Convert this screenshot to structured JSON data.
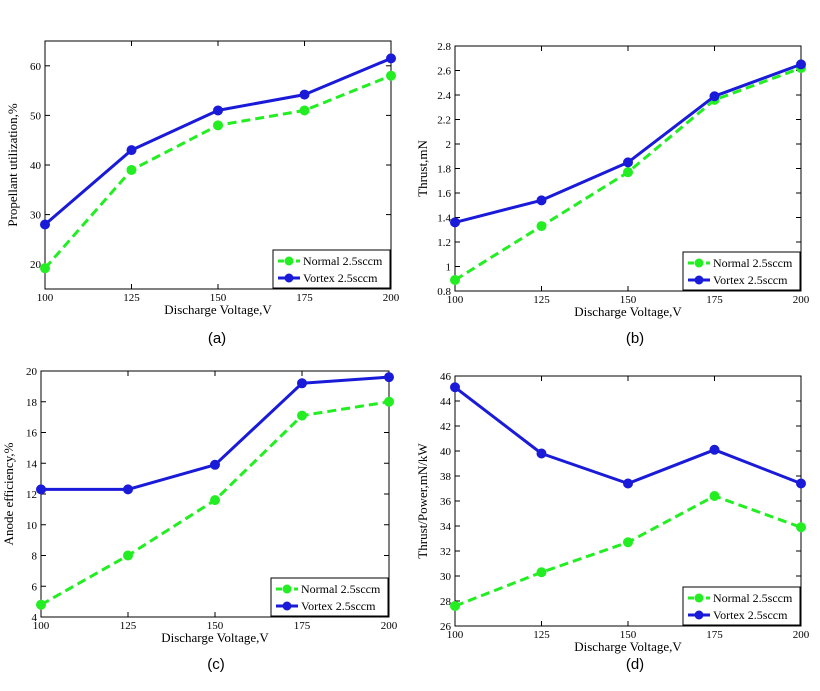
{
  "colors": {
    "normal": "#22ee22",
    "vortex": "#1a1ad9"
  },
  "chart_data": [
    {
      "id": "a",
      "type": "line",
      "panel_label": "(a)",
      "xlabel": "Discharge Voltage,V",
      "ylabel": "Propellant utilization,%",
      "xlim": [
        100,
        200
      ],
      "ylim": [
        15,
        65
      ],
      "xticks": [
        100,
        125,
        150,
        175,
        200
      ],
      "yticks": [
        20,
        30,
        40,
        50,
        60
      ],
      "ytick_labels": [
        "20",
        "30",
        "40",
        "50",
        "60"
      ],
      "x": [
        100,
        125,
        150,
        175,
        200
      ],
      "legend": "bottom-right",
      "series": [
        {
          "name": "Normal 2.5sccm",
          "style": "dashed",
          "values": [
            19.2,
            39.0,
            48.0,
            51.0,
            58.0
          ]
        },
        {
          "name": "Vortex 2.5sccm",
          "style": "solid",
          "values": [
            28.0,
            43.0,
            51.0,
            54.2,
            61.5
          ]
        }
      ]
    },
    {
      "id": "b",
      "type": "line",
      "panel_label": "(b)",
      "xlabel": "Discharge Voltage,V",
      "ylabel": "Thrust,mN",
      "xlim": [
        100,
        200
      ],
      "ylim": [
        0.8,
        2.8
      ],
      "xticks": [
        100,
        125,
        150,
        175,
        200
      ],
      "yticks": [
        0.8,
        1.0,
        1.2,
        1.4,
        1.6,
        1.8,
        2.0,
        2.2,
        2.4,
        2.6,
        2.8
      ],
      "ytick_labels": [
        "0.8",
        "1",
        "1.2",
        "1.4",
        "1.6",
        "1.8",
        "2",
        "2.2",
        "2.4",
        "2.6",
        "2.8"
      ],
      "x": [
        100,
        125,
        150,
        175,
        200
      ],
      "legend": "bottom-right",
      "series": [
        {
          "name": "Normal 2.5sccm",
          "style": "dashed",
          "values": [
            0.89,
            1.33,
            1.77,
            2.36,
            2.62
          ]
        },
        {
          "name": "Vortex 2.5sccm",
          "style": "solid",
          "values": [
            1.36,
            1.54,
            1.85,
            2.39,
            2.65
          ]
        }
      ]
    },
    {
      "id": "c",
      "type": "line",
      "panel_label": "(c)",
      "xlabel": "Discharge Voltage,V",
      "ylabel": "Anode efficiency,%",
      "xlim": [
        100,
        200
      ],
      "ylim": [
        4,
        20
      ],
      "xticks": [
        100,
        125,
        150,
        175,
        200
      ],
      "yticks": [
        4,
        6,
        8,
        10,
        12,
        14,
        16,
        18,
        20
      ],
      "ytick_labels": [
        "4",
        "6",
        "8",
        "10",
        "12",
        "14",
        "16",
        "18",
        "20"
      ],
      "x": [
        100,
        125,
        150,
        175,
        200
      ],
      "legend": "bottom-right",
      "series": [
        {
          "name": "Normal 2.5sccm",
          "style": "dashed",
          "values": [
            4.8,
            8.0,
            11.6,
            17.1,
            18.0
          ]
        },
        {
          "name": "Vortex 2.5sccm",
          "style": "solid",
          "values": [
            12.3,
            12.3,
            13.9,
            19.2,
            19.6
          ]
        }
      ]
    },
    {
      "id": "d",
      "type": "line",
      "panel_label": "(d)",
      "xlabel": "Discharge Voltage,V",
      "ylabel": "Thrust/Power,mN/kW",
      "xlim": [
        100,
        200
      ],
      "ylim": [
        26,
        46
      ],
      "xticks": [
        100,
        125,
        150,
        175,
        200
      ],
      "yticks": [
        26,
        28,
        30,
        32,
        34,
        36,
        38,
        40,
        42,
        44,
        46
      ],
      "ytick_labels": [
        "26",
        "28",
        "30",
        "32",
        "34",
        "36",
        "38",
        "40",
        "42",
        "44",
        "46"
      ],
      "x": [
        100,
        125,
        150,
        175,
        200
      ],
      "legend": "bottom-right",
      "series": [
        {
          "name": "Normal 2.5sccm",
          "style": "dashed",
          "values": [
            27.6,
            30.3,
            32.7,
            36.4,
            33.9
          ]
        },
        {
          "name": "Vortex 2.5sccm",
          "style": "solid",
          "values": [
            45.1,
            39.8,
            37.4,
            40.1,
            37.4
          ]
        }
      ]
    }
  ]
}
